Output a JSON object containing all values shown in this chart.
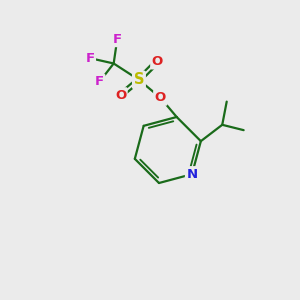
{
  "bg_color": "#ebebeb",
  "atom_colors": {
    "C": "#000000",
    "N": "#2222dd",
    "O": "#dd2222",
    "S": "#bbbb00",
    "F": "#cc22cc"
  },
  "bond_color": "#1a6b1a",
  "bond_width": 1.6,
  "figsize": [
    3.0,
    3.0
  ],
  "dpi": 100
}
